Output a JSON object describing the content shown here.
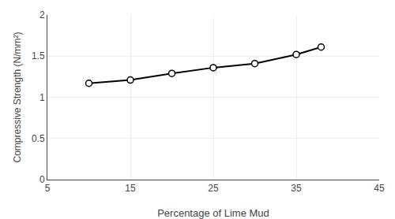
{
  "chart_data": {
    "type": "line",
    "x": [
      10,
      15,
      20,
      25,
      30,
      35,
      38
    ],
    "values": [
      1.17,
      1.21,
      1.29,
      1.36,
      1.41,
      1.52,
      1.61
    ],
    "xlabel": "Percentage of Lime Mud",
    "ylabel": "Compressive Strength (N/mm²)",
    "xlim": [
      5,
      45
    ],
    "ylim": [
      0,
      2
    ],
    "xticks": [
      5,
      15,
      25,
      35,
      45
    ],
    "yticks": [
      0,
      0.5,
      1,
      1.5,
      2
    ],
    "color": "#000000",
    "marker": "circle",
    "line_style": "solid",
    "grid": true
  }
}
